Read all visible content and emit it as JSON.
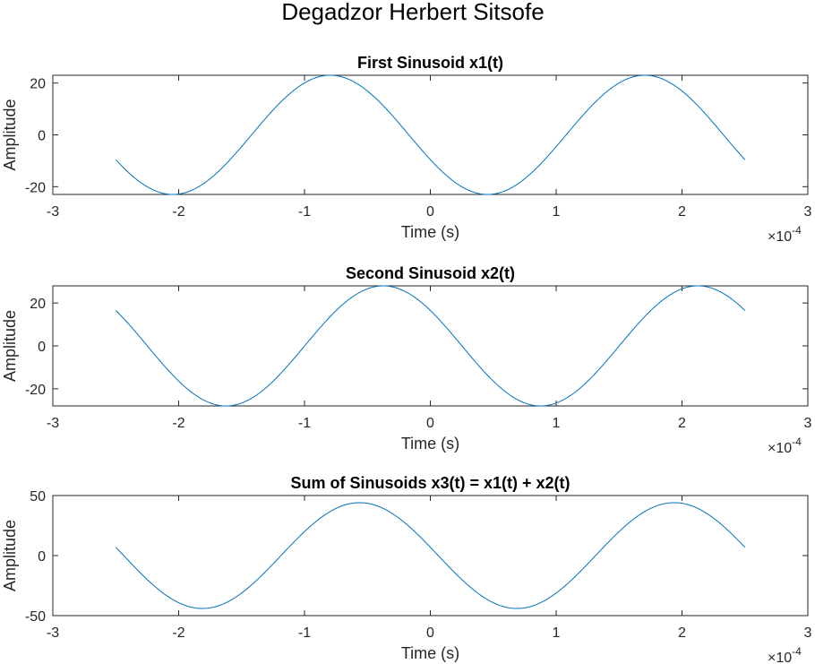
{
  "figure": {
    "suptitle": "Degadzor Herbert Sitsofe"
  },
  "chart_data": [
    {
      "type": "line",
      "title": "First Sinusoid x1(t)",
      "xlabel": "Time (s)",
      "ylabel": "Amplitude",
      "exponent_label": "×10",
      "exponent_power": "-4",
      "x_scale": 0.0001,
      "xlim": [
        -3,
        3
      ],
      "ylim": [
        -23,
        23
      ],
      "xticks": [
        -3,
        -2,
        -1,
        0,
        1,
        2,
        3
      ],
      "xticklabels": [
        "-3",
        "-2",
        "-1",
        "0",
        "1",
        "2",
        "3"
      ],
      "yticks": [
        -20,
        0,
        20
      ],
      "yticklabels": [
        "-20",
        "0",
        "20"
      ],
      "grid": false,
      "color": "#0072bd",
      "series": [
        {
          "amplitude": 23,
          "frequency_hz": 4000,
          "phase_rad": 2.0,
          "t_range": [
            -0.00025,
            0.00025
          ],
          "points": 400
        }
      ]
    },
    {
      "type": "line",
      "title": "Second Sinusoid x2(t)",
      "xlabel": "Time (s)",
      "ylabel": "Amplitude",
      "exponent_label": "×10",
      "exponent_power": "-4",
      "x_scale": 0.0001,
      "xlim": [
        -3,
        3
      ],
      "ylim": [
        -28,
        28
      ],
      "xticks": [
        -3,
        -2,
        -1,
        0,
        1,
        2,
        3
      ],
      "xticklabels": [
        "-3",
        "-2",
        "-1",
        "0",
        "1",
        "2",
        "3"
      ],
      "yticks": [
        -20,
        0,
        20
      ],
      "yticklabels": [
        "-20",
        "0",
        "20"
      ],
      "grid": false,
      "color": "#0072bd",
      "series": [
        {
          "amplitude": 28,
          "frequency_hz": 4000,
          "phase_rad": 0.94,
          "t_range": [
            -0.00025,
            0.00025
          ],
          "points": 400
        }
      ]
    },
    {
      "type": "line",
      "title": "Sum of Sinusoids x3(t) = x1(t) + x2(t)",
      "xlabel": "Time (s)",
      "ylabel": "Amplitude",
      "exponent_label": "×10",
      "exponent_power": "-4",
      "x_scale": 0.0001,
      "xlim": [
        -3,
        3
      ],
      "ylim": [
        -50,
        50
      ],
      "xticks": [
        -3,
        -2,
        -1,
        0,
        1,
        2,
        3
      ],
      "xticklabels": [
        "-3",
        "-2",
        "-1",
        "0",
        "1",
        "2",
        "3"
      ],
      "yticks": [
        -50,
        0,
        50
      ],
      "yticklabels": [
        "-50",
        "0",
        "50"
      ],
      "grid": false,
      "color": "#0072bd",
      "series": [
        {
          "sum_of": [
            0,
            1
          ],
          "t_range": [
            -0.00025,
            0.00025
          ],
          "points": 400
        }
      ]
    }
  ]
}
